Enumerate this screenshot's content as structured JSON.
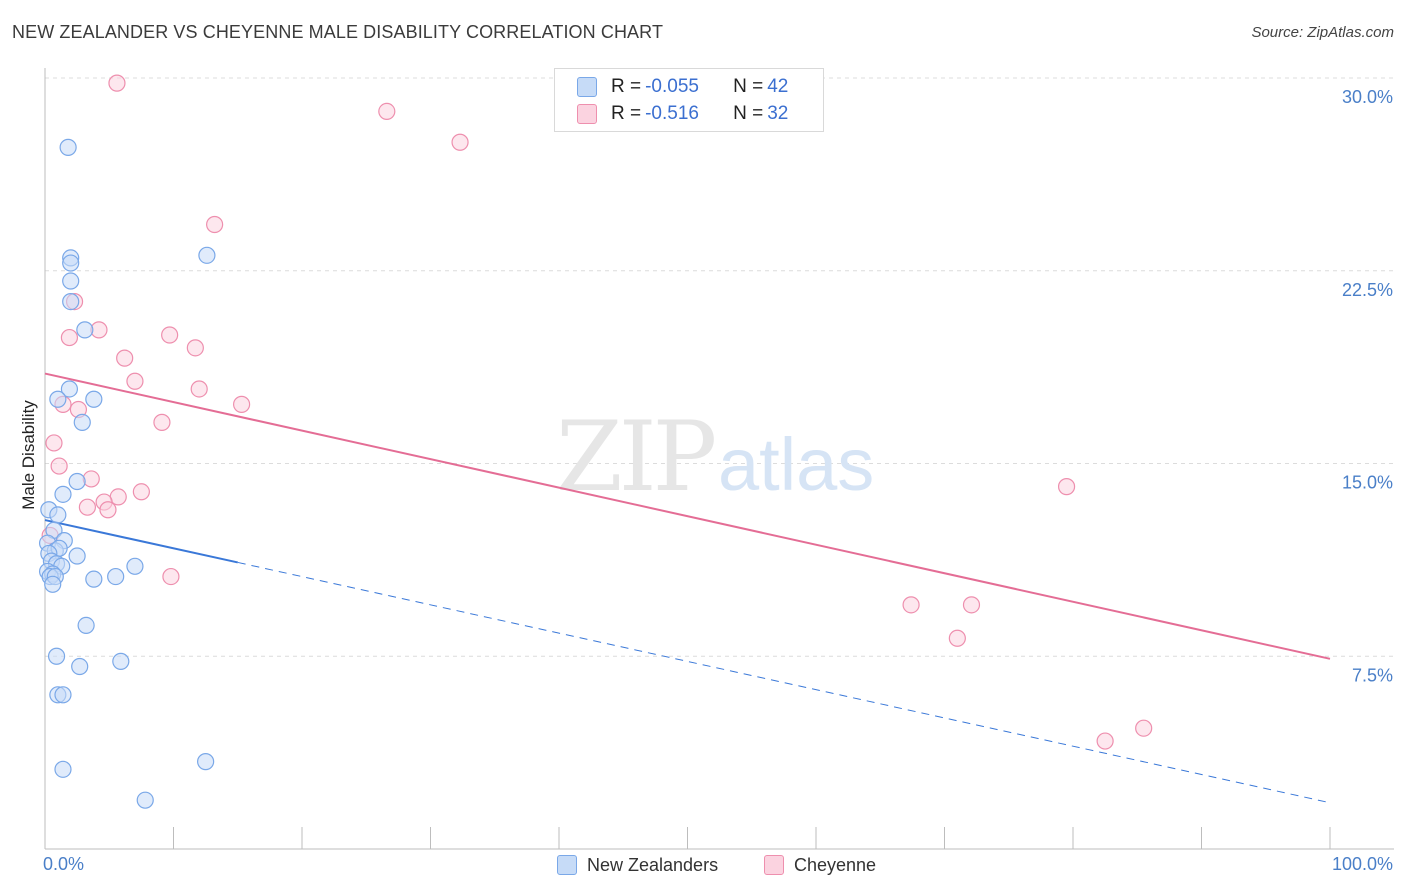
{
  "title": "NEW ZEALANDER VS CHEYENNE MALE DISABILITY CORRELATION CHART",
  "source": "Source: ZipAtlas.com",
  "watermark": {
    "zip": "ZIP",
    "atlas": "atlas"
  },
  "colors": {
    "blue": "#7aa8e8",
    "blue_fill": "#c6dbf7",
    "blue_line": "#3a78d8",
    "pink": "#ee8fae",
    "pink_fill": "#fbd3e0",
    "pink_line": "#e46d95",
    "grid": "#dcdcdc",
    "axis": "#bdbdbd",
    "tick_text": "#4a7fc8"
  },
  "legend": {
    "rows": [
      {
        "r_label": "R = ",
        "r_value": "-0.055",
        "n_label": "N = ",
        "n_value": "42"
      },
      {
        "r_label": "R = ",
        "r_value": "-0.516",
        "n_label": "N = ",
        "n_value": "32"
      }
    ]
  },
  "chart_data": {
    "type": "scatter",
    "title": "NEW ZEALANDER VS CHEYENNE MALE DISABILITY CORRELATION CHART",
    "xlabel": "",
    "ylabel": "Male Disability",
    "xlim": [
      0,
      100
    ],
    "ylim": [
      0,
      30
    ],
    "x_tick_labels": [
      "0.0%",
      "100.0%"
    ],
    "y_ticks": [
      7.5,
      15.0,
      22.5,
      30.0
    ],
    "y_tick_labels": [
      "7.5%",
      "15.0%",
      "22.5%",
      "30.0%"
    ],
    "grid": true,
    "legend_position": "bottom-center",
    "series": [
      {
        "name": "New Zealanders",
        "r": -0.055,
        "n": 42,
        "trend": {
          "x": [
            0,
            100
          ],
          "y": [
            12.8,
            1.8
          ],
          "solid_until_x": 15
        },
        "points": [
          {
            "x": 1.8,
            "y": 27.3
          },
          {
            "x": 2.0,
            "y": 23.0
          },
          {
            "x": 2.0,
            "y": 22.8
          },
          {
            "x": 12.6,
            "y": 23.1
          },
          {
            "x": 2.0,
            "y": 22.1
          },
          {
            "x": 2.0,
            "y": 21.3
          },
          {
            "x": 3.1,
            "y": 20.2
          },
          {
            "x": 1.9,
            "y": 17.9
          },
          {
            "x": 1.0,
            "y": 17.5
          },
          {
            "x": 3.8,
            "y": 17.5
          },
          {
            "x": 2.9,
            "y": 16.6
          },
          {
            "x": 2.5,
            "y": 14.3
          },
          {
            "x": 1.4,
            "y": 13.8
          },
          {
            "x": 0.3,
            "y": 13.2
          },
          {
            "x": 1.0,
            "y": 13.0
          },
          {
            "x": 0.7,
            "y": 12.4
          },
          {
            "x": 1.5,
            "y": 12.0
          },
          {
            "x": 0.2,
            "y": 11.9
          },
          {
            "x": 0.8,
            "y": 11.6
          },
          {
            "x": 1.1,
            "y": 11.7
          },
          {
            "x": 0.3,
            "y": 11.5
          },
          {
            "x": 2.5,
            "y": 11.4
          },
          {
            "x": 0.5,
            "y": 11.2
          },
          {
            "x": 0.9,
            "y": 11.1
          },
          {
            "x": 1.3,
            "y": 11.0
          },
          {
            "x": 7.0,
            "y": 11.0
          },
          {
            "x": 0.2,
            "y": 10.8
          },
          {
            "x": 0.6,
            "y": 10.7
          },
          {
            "x": 0.4,
            "y": 10.6
          },
          {
            "x": 0.8,
            "y": 10.6
          },
          {
            "x": 3.8,
            "y": 10.5
          },
          {
            "x": 5.5,
            "y": 10.6
          },
          {
            "x": 0.6,
            "y": 10.3
          },
          {
            "x": 3.2,
            "y": 8.7
          },
          {
            "x": 0.9,
            "y": 7.5
          },
          {
            "x": 2.7,
            "y": 7.1
          },
          {
            "x": 5.9,
            "y": 7.3
          },
          {
            "x": 1.0,
            "y": 6.0
          },
          {
            "x": 1.4,
            "y": 6.0
          },
          {
            "x": 1.4,
            "y": 3.1
          },
          {
            "x": 12.5,
            "y": 3.4
          },
          {
            "x": 7.8,
            "y": 1.9
          }
        ]
      },
      {
        "name": "Cheyenne",
        "r": -0.516,
        "n": 32,
        "trend": {
          "x": [
            0,
            100
          ],
          "y": [
            18.5,
            7.4
          ]
        },
        "points": [
          {
            "x": 5.6,
            "y": 29.8
          },
          {
            "x": 26.6,
            "y": 28.7
          },
          {
            "x": 32.3,
            "y": 27.5
          },
          {
            "x": 13.2,
            "y": 24.3
          },
          {
            "x": 2.3,
            "y": 21.3
          },
          {
            "x": 4.2,
            "y": 20.2
          },
          {
            "x": 9.7,
            "y": 20.0
          },
          {
            "x": 1.9,
            "y": 19.9
          },
          {
            "x": 11.7,
            "y": 19.5
          },
          {
            "x": 6.2,
            "y": 19.1
          },
          {
            "x": 7.0,
            "y": 18.2
          },
          {
            "x": 12.0,
            "y": 17.9
          },
          {
            "x": 1.4,
            "y": 17.3
          },
          {
            "x": 15.3,
            "y": 17.3
          },
          {
            "x": 2.6,
            "y": 17.1
          },
          {
            "x": 9.1,
            "y": 16.6
          },
          {
            "x": 0.7,
            "y": 15.8
          },
          {
            "x": 1.1,
            "y": 14.9
          },
          {
            "x": 3.6,
            "y": 14.4
          },
          {
            "x": 7.5,
            "y": 13.9
          },
          {
            "x": 5.7,
            "y": 13.7
          },
          {
            "x": 4.6,
            "y": 13.5
          },
          {
            "x": 3.3,
            "y": 13.3
          },
          {
            "x": 4.9,
            "y": 13.2
          },
          {
            "x": 0.4,
            "y": 12.2
          },
          {
            "x": 9.8,
            "y": 10.6
          },
          {
            "x": 79.5,
            "y": 14.1
          },
          {
            "x": 67.4,
            "y": 9.5
          },
          {
            "x": 72.1,
            "y": 9.5
          },
          {
            "x": 71.0,
            "y": 8.2
          },
          {
            "x": 85.5,
            "y": 4.7
          },
          {
            "x": 82.5,
            "y": 4.2
          }
        ]
      }
    ]
  }
}
